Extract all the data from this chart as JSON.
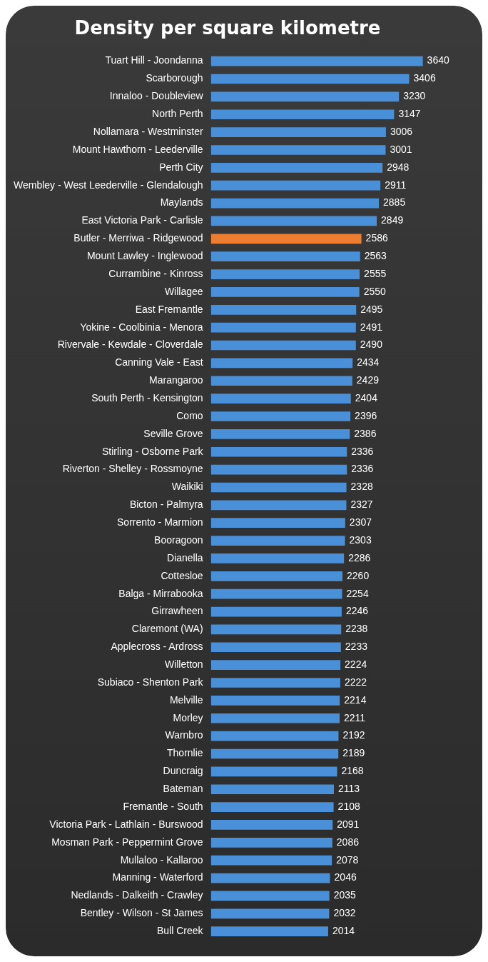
{
  "chart_data": {
    "type": "bar",
    "orientation": "horizontal",
    "title": "Density per square kilometre",
    "data_labels": true,
    "categories": [
      "Tuart Hill - Joondanna",
      "Scarborough",
      "Innaloo - Doubleview",
      "North Perth",
      "Nollamara - Westminster",
      "Mount Hawthorn - Leederville",
      "Perth City",
      "Wembley - West Leederville - Glendalough",
      "Maylands",
      "East Victoria Park - Carlisle",
      "Butler - Merriwa - Ridgewood",
      "Mount Lawley - Inglewood",
      "Currambine - Kinross",
      "Willagee",
      "East Fremantle",
      "Yokine - Coolbinia - Menora",
      "Rivervale - Kewdale - Cloverdale",
      "Canning Vale - East",
      "Marangaroo",
      "South Perth - Kensington",
      "Como",
      "Seville Grove",
      "Stirling - Osborne Park",
      "Riverton - Shelley - Rossmoyne",
      "Waikiki",
      "Bicton - Palmyra",
      "Sorrento - Marmion",
      "Booragoon",
      "Dianella",
      "Cottesloe",
      "Balga - Mirrabooka",
      "Girrawheen",
      "Claremont (WA)",
      "Applecross - Ardross",
      "Willetton",
      "Subiaco - Shenton Park",
      "Melville",
      "Morley",
      "Warnbro",
      "Thornlie",
      "Duncraig",
      "Bateman",
      "Fremantle - South",
      "Victoria Park - Lathlain - Burswood",
      "Mosman Park - Peppermint Grove",
      "Mullaloo - Kallaroo",
      "Manning - Waterford",
      "Nedlands - Dalkeith - Crawley",
      "Bentley - Wilson - St James",
      "Bull Creek"
    ],
    "values": [
      3640,
      3406,
      3230,
      3147,
      3006,
      3001,
      2948,
      2911,
      2885,
      2849,
      2586,
      2563,
      2555,
      2550,
      2495,
      2491,
      2490,
      2434,
      2429,
      2404,
      2396,
      2386,
      2336,
      2336,
      2328,
      2327,
      2307,
      2303,
      2286,
      2260,
      2254,
      2246,
      2238,
      2233,
      2224,
      2222,
      2214,
      2211,
      2192,
      2189,
      2168,
      2113,
      2108,
      2091,
      2086,
      2078,
      2046,
      2035,
      2032,
      2014
    ],
    "colors": [
      "#4a90d9",
      "#4a90d9",
      "#4a90d9",
      "#4a90d9",
      "#4a90d9",
      "#4a90d9",
      "#4a90d9",
      "#4a90d9",
      "#4a90d9",
      "#4a90d9",
      "#ed7d31",
      "#4a90d9",
      "#4a90d9",
      "#4a90d9",
      "#4a90d9",
      "#4a90d9",
      "#4a90d9",
      "#4a90d9",
      "#4a90d9",
      "#4a90d9",
      "#4a90d9",
      "#4a90d9",
      "#4a90d9",
      "#4a90d9",
      "#4a90d9",
      "#4a90d9",
      "#4a90d9",
      "#4a90d9",
      "#4a90d9",
      "#4a90d9",
      "#4a90d9",
      "#4a90d9",
      "#4a90d9",
      "#4a90d9",
      "#4a90d9",
      "#4a90d9",
      "#4a90d9",
      "#4a90d9",
      "#4a90d9",
      "#4a90d9",
      "#4a90d9",
      "#4a90d9",
      "#4a90d9",
      "#4a90d9",
      "#4a90d9",
      "#4a90d9",
      "#4a90d9",
      "#4a90d9",
      "#4a90d9",
      "#4a90d9"
    ]
  }
}
